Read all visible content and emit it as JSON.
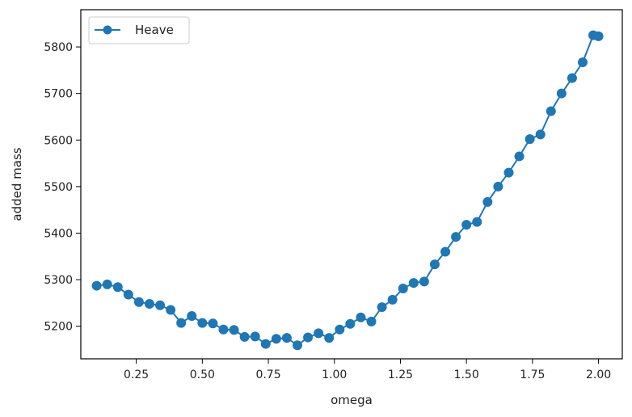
{
  "chart_data": {
    "type": "line",
    "xlabel": "omega",
    "ylabel": "added mass",
    "xlim": [
      0.04,
      2.09
    ],
    "ylim": [
      5130,
      5880
    ],
    "xticks": [
      0.25,
      0.5,
      0.75,
      1.0,
      1.25,
      1.5,
      1.75,
      2.0
    ],
    "xtick_labels": [
      "0.25",
      "0.50",
      "0.75",
      "1.00",
      "1.25",
      "1.50",
      "1.75",
      "2.00"
    ],
    "yticks": [
      5200,
      5300,
      5400,
      5500,
      5600,
      5700,
      5800
    ],
    "ytick_labels": [
      "5200",
      "5300",
      "5400",
      "5500",
      "5600",
      "5700",
      "5800"
    ],
    "grid": false,
    "legend_position": "top-left",
    "series": [
      {
        "name": "Heave",
        "color": "#1f77b4",
        "marker": "circle",
        "x": [
          0.1,
          0.14,
          0.18,
          0.22,
          0.26,
          0.3,
          0.34,
          0.38,
          0.42,
          0.46,
          0.5,
          0.54,
          0.58,
          0.62,
          0.66,
          0.7,
          0.74,
          0.78,
          0.82,
          0.86,
          0.9,
          0.94,
          0.98,
          1.02,
          1.06,
          1.1,
          1.14,
          1.18,
          1.22,
          1.26,
          1.3,
          1.34,
          1.38,
          1.42,
          1.46,
          1.5,
          1.54,
          1.58,
          1.62,
          1.66,
          1.7,
          1.74,
          1.78,
          1.82,
          1.86,
          1.9,
          1.94,
          1.98,
          2.0
        ],
        "y": [
          5287,
          5290,
          5284,
          5268,
          5252,
          5248,
          5245,
          5235,
          5207,
          5222,
          5207,
          5206,
          5193,
          5192,
          5177,
          5178,
          5162,
          5173,
          5175,
          5159,
          5176,
          5185,
          5175,
          5193,
          5205,
          5219,
          5210,
          5241,
          5257,
          5281,
          5293,
          5296,
          5333,
          5360,
          5392,
          5418,
          5424,
          5467,
          5500,
          5530,
          5565,
          5602,
          5612,
          5662,
          5700,
          5733,
          5767,
          5825,
          5823
        ]
      }
    ]
  }
}
